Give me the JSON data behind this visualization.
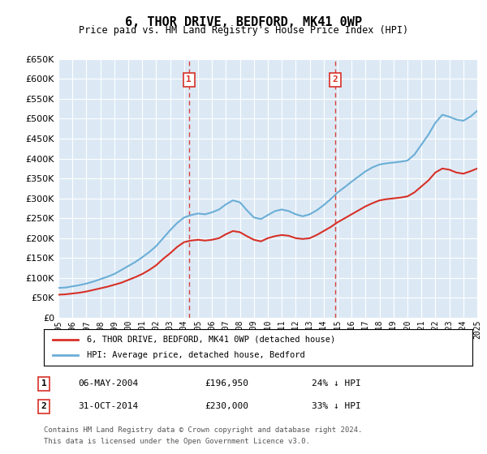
{
  "title": "6, THOR DRIVE, BEDFORD, MK41 0WP",
  "subtitle": "Price paid vs. HM Land Registry's House Price Index (HPI)",
  "legend_line1": "6, THOR DRIVE, BEDFORD, MK41 0WP (detached house)",
  "legend_line2": "HPI: Average price, detached house, Bedford",
  "annotation1": {
    "num": "1",
    "date": "06-MAY-2004",
    "price": "£196,950",
    "pct": "24% ↓ HPI",
    "year": 2004.35
  },
  "annotation2": {
    "num": "2",
    "date": "31-OCT-2014",
    "price": "£230,000",
    "pct": "33% ↓ HPI",
    "year": 2014.83
  },
  "footer1": "Contains HM Land Registry data © Crown copyright and database right 2024.",
  "footer2": "This data is licensed under the Open Government Licence v3.0.",
  "ylim": [
    0,
    650000
  ],
  "yticks": [
    0,
    50000,
    100000,
    150000,
    200000,
    250000,
    300000,
    350000,
    400000,
    450000,
    500000,
    550000,
    600000,
    650000
  ],
  "background_color": "#dce9f5",
  "plot_bg_color": "#dce9f5",
  "hpi_color": "#6baed6",
  "price_color": "#d73027",
  "vline_color": "#d73027",
  "hpi_data_x": [
    1995,
    1995.5,
    1996,
    1996.5,
    1997,
    1997.5,
    1998,
    1998.5,
    1999,
    1999.5,
    2000,
    2000.5,
    2001,
    2001.5,
    2002,
    2002.5,
    2003,
    2003.5,
    2004,
    2004.5,
    2005,
    2005.5,
    2006,
    2006.5,
    2007,
    2007.5,
    2008,
    2008.5,
    2009,
    2009.5,
    2010,
    2010.5,
    2011,
    2011.5,
    2012,
    2012.5,
    2013,
    2013.5,
    2014,
    2014.5,
    2015,
    2015.5,
    2016,
    2016.5,
    2017,
    2017.5,
    2018,
    2018.5,
    2019,
    2019.5,
    2020,
    2020.5,
    2021,
    2021.5,
    2022,
    2022.5,
    2023,
    2023.5,
    2024,
    2024.5,
    2025
  ],
  "hpi_data_y": [
    75000,
    76000,
    79000,
    82000,
    86000,
    91000,
    97000,
    103000,
    110000,
    120000,
    130000,
    140000,
    152000,
    165000,
    180000,
    200000,
    220000,
    238000,
    252000,
    258000,
    262000,
    260000,
    265000,
    272000,
    285000,
    295000,
    290000,
    270000,
    252000,
    248000,
    258000,
    268000,
    272000,
    268000,
    260000,
    255000,
    260000,
    270000,
    283000,
    298000,
    315000,
    328000,
    342000,
    355000,
    368000,
    378000,
    385000,
    388000,
    390000,
    392000,
    395000,
    410000,
    435000,
    460000,
    490000,
    510000,
    505000,
    498000,
    495000,
    505000,
    520000
  ],
  "price_data_x": [
    1995,
    1995.5,
    1996,
    1996.5,
    1997,
    1997.5,
    1998,
    1998.5,
    1999,
    1999.5,
    2000,
    2000.5,
    2001,
    2001.5,
    2002,
    2002.5,
    2003,
    2003.5,
    2004,
    2004.5,
    2005,
    2005.5,
    2006,
    2006.5,
    2007,
    2007.5,
    2008,
    2008.5,
    2009,
    2009.5,
    2010,
    2010.5,
    2011,
    2011.5,
    2012,
    2012.5,
    2013,
    2013.5,
    2014,
    2014.5,
    2015,
    2015.5,
    2016,
    2016.5,
    2017,
    2017.5,
    2018,
    2018.5,
    2019,
    2019.5,
    2020,
    2020.5,
    2021,
    2021.5,
    2022,
    2022.5,
    2023,
    2023.5,
    2024,
    2024.5,
    2025
  ],
  "price_data_y": [
    58000,
    59000,
    61000,
    63000,
    66000,
    70000,
    74000,
    78000,
    83000,
    88000,
    95000,
    102000,
    110000,
    120000,
    132000,
    148000,
    162000,
    178000,
    190000,
    194000,
    196000,
    194000,
    196000,
    200000,
    210000,
    218000,
    215000,
    205000,
    196000,
    192000,
    200000,
    205000,
    208000,
    206000,
    200000,
    198000,
    200000,
    208000,
    218000,
    228000,
    240000,
    250000,
    260000,
    270000,
    280000,
    288000,
    295000,
    298000,
    300000,
    302000,
    305000,
    315000,
    330000,
    345000,
    365000,
    375000,
    372000,
    365000,
    362000,
    368000,
    375000
  ]
}
